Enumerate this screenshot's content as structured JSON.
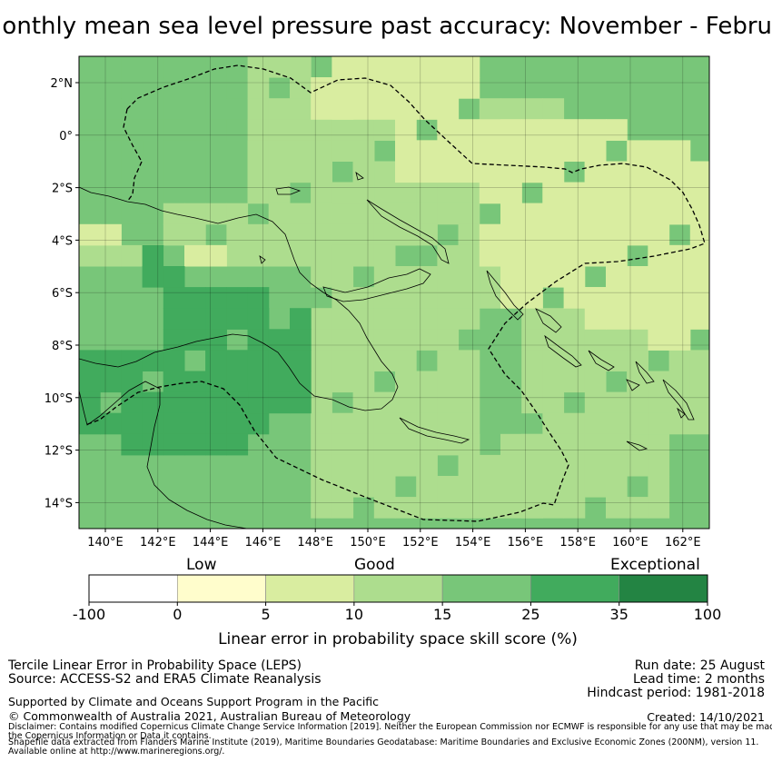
{
  "title": "Monthly mean sea level pressure past accuracy: November - February",
  "map": {
    "lon_ticks": [
      "140°E",
      "142°E",
      "144°E",
      "146°E",
      "148°E",
      "150°E",
      "152°E",
      "154°E",
      "156°E",
      "158°E",
      "160°E",
      "162°E"
    ],
    "lat_ticks": [
      "2°N",
      "0°",
      "2°S",
      "4°S",
      "6°S",
      "8°S",
      "10°S",
      "12°S",
      "14°S"
    ],
    "legend": {
      "categories": [
        "Low",
        "Good",
        "Exceptional"
      ],
      "bin_edges": [
        "-100",
        "0",
        "5",
        "10",
        "15",
        "25",
        "35",
        "100"
      ],
      "colors": [
        "#ffffff",
        "#fffdcc",
        "#d9eda0",
        "#addd8e",
        "#78c679",
        "#41ab5d",
        "#238443"
      ],
      "xlabel": "Linear error in probability space skill score (%)"
    }
  },
  "footer": {
    "method": "Tercile Linear Error in Probability Space (LEPS)",
    "source": "Source: ACCESS-S2 and ERA5 Climate Reanalysis",
    "support": "Supported by Climate and Oceans Support Program in the Pacific",
    "copyright": "© Commonwealth of Australia 2021, Australian Bureau of Meteorology",
    "disclaimer_1": "Disclaimer: Contains modified Copernicus Climate Change Service Information [2019]. Neither the European Commission nor ECMWF is responsible for any use that may be made of",
    "disclaimer_2": "the Copernicus Information or Data it contains.",
    "shapefile_1": "Shapefile data extracted from Flanders Marine Institute (2019), Maritime Boundaries Geodatabase: Maritime Boundaries and Exclusive Economic Zones (200NM), version 11.",
    "shapefile_2": "Available online at http://www.marineregions.org/.",
    "run_date": "Run date: 25 August",
    "lead_time": "Lead time: 2 months",
    "hindcast": "Hindcast period: 1981-2018",
    "created": "Created: 14/10/2021"
  }
}
